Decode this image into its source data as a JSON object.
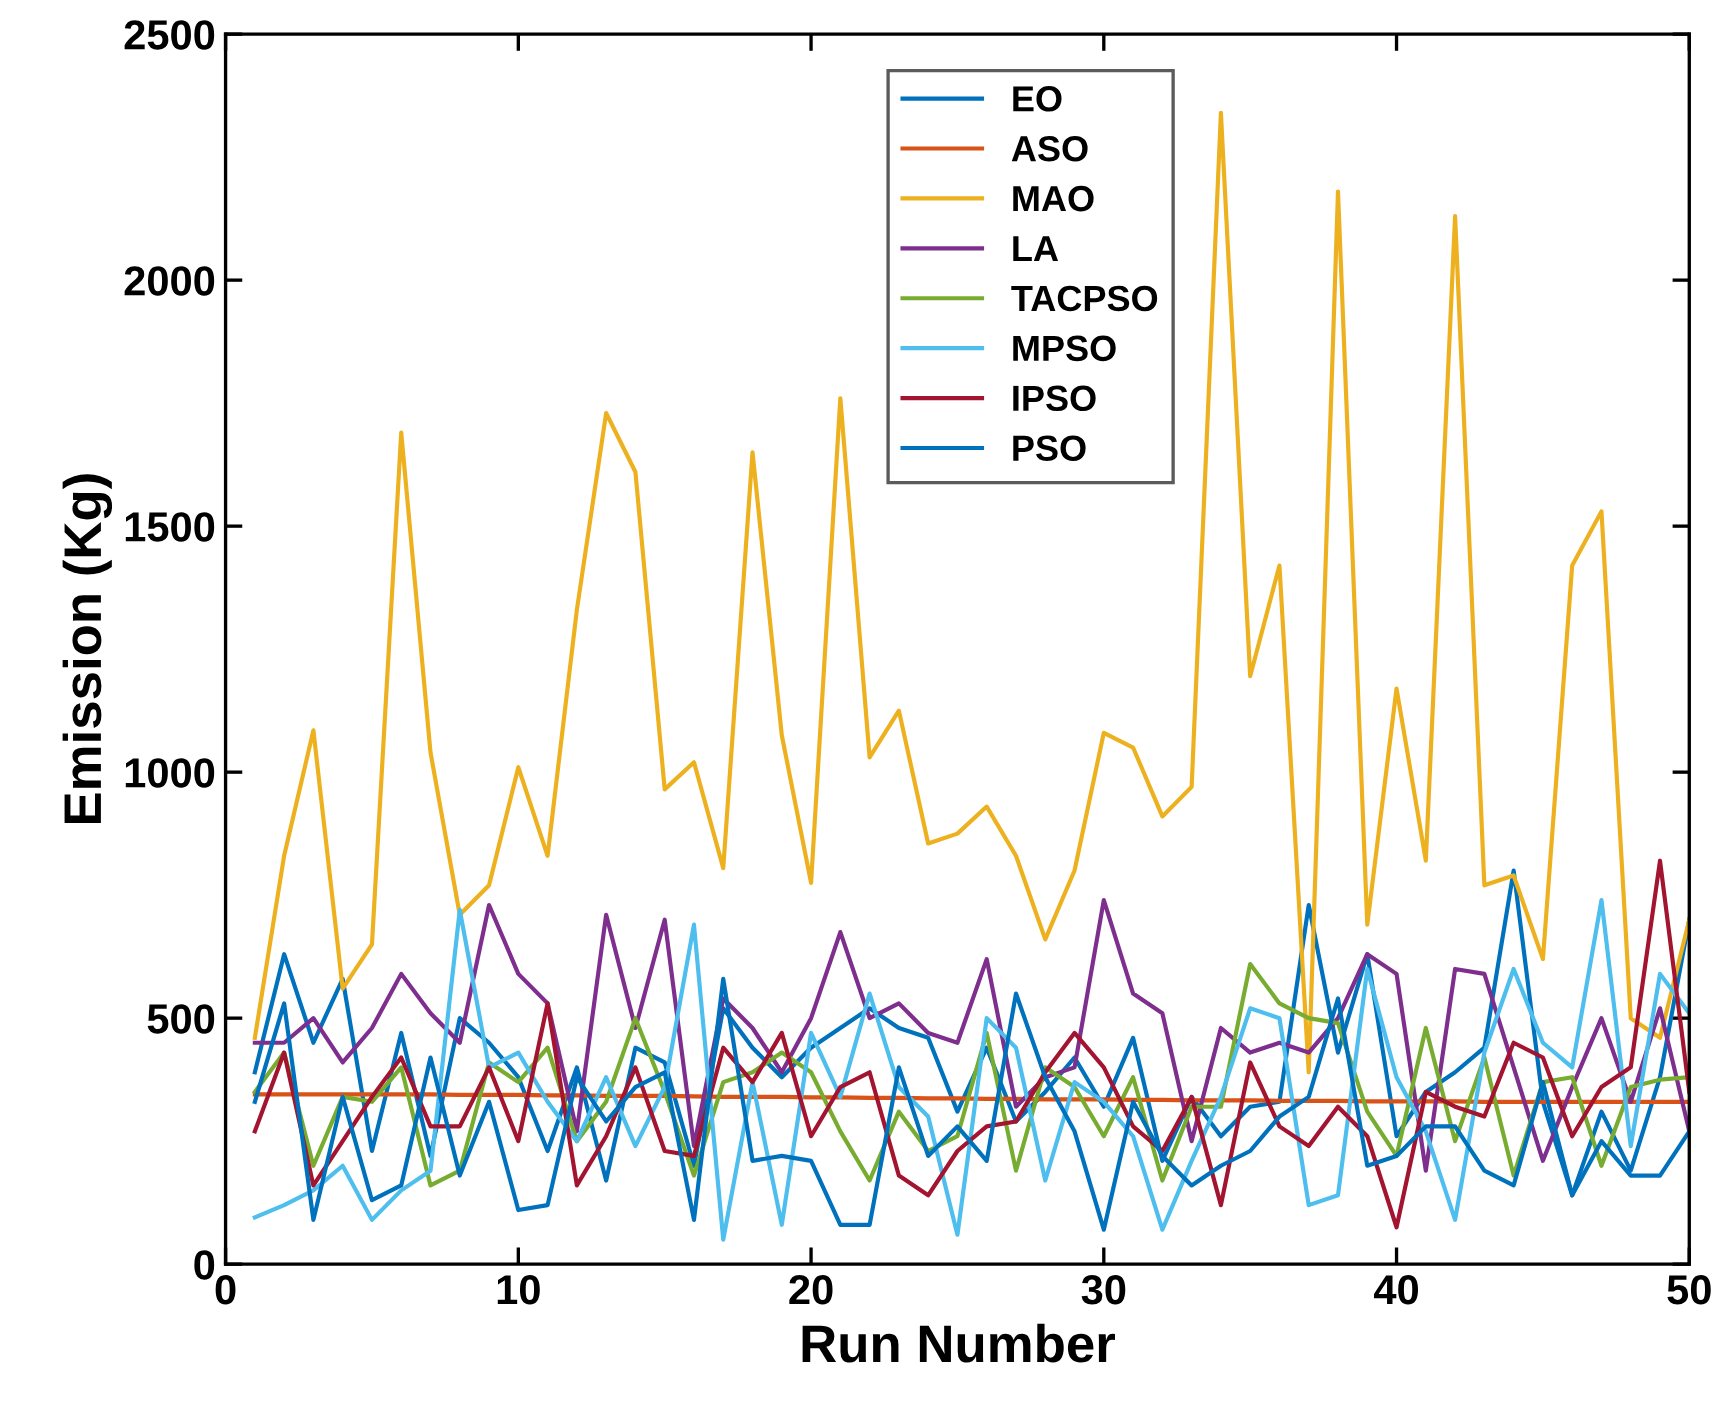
{
  "chart_data": {
    "type": "line",
    "xlabel": "Run Number",
    "ylabel": "Emission (Kg)",
    "x": [
      1,
      2,
      3,
      4,
      5,
      6,
      7,
      8,
      9,
      10,
      11,
      12,
      13,
      14,
      15,
      16,
      17,
      18,
      19,
      20,
      21,
      22,
      23,
      24,
      25,
      26,
      27,
      28,
      29,
      30,
      31,
      32,
      33,
      34,
      35,
      36,
      37,
      38,
      39,
      40,
      41,
      42,
      43,
      44,
      45,
      46,
      47,
      48,
      49,
      50
    ],
    "xlim": [
      0,
      50
    ],
    "xticks": [
      0,
      10,
      20,
      30,
      40,
      50
    ],
    "ylim": [
      0,
      2500
    ],
    "yticks": [
      0,
      500,
      1000,
      1500,
      2000,
      2500
    ],
    "grid": false,
    "legend": "top",
    "marker": "none",
    "line_style": "solid",
    "series": [
      {
        "name": "EO",
        "color": "#0072bd",
        "values": [
          390,
          630,
          450,
          580,
          230,
          470,
          220,
          500,
          450,
          380,
          230,
          400,
          170,
          440,
          410,
          200,
          520,
          440,
          380,
          440,
          480,
          520,
          480,
          460,
          310,
          440,
          290,
          350,
          420,
          320,
          460,
          210,
          340,
          260,
          320,
          330,
          730,
          430,
          630,
          260,
          350,
          390,
          440,
          800,
          330,
          140,
          310,
          190,
          380,
          700
        ]
      },
      {
        "name": "ASO",
        "color": "#d95319",
        "values": [
          345,
          345,
          345,
          345,
          345,
          345,
          345,
          344,
          344,
          344,
          343,
          343,
          342,
          342,
          342,
          341,
          340,
          340,
          340,
          339,
          339,
          338,
          338,
          337,
          337,
          336,
          336,
          335,
          335,
          335,
          334,
          334,
          333,
          333,
          333,
          332,
          332,
          332,
          331,
          331,
          331,
          331,
          330,
          330,
          330,
          330,
          330,
          330,
          330,
          330
        ]
      },
      {
        "name": "MAO",
        "color": "#edb120",
        "values": [
          460,
          830,
          1085,
          560,
          650,
          1690,
          1040,
          710,
          770,
          1010,
          830,
          1330,
          1730,
          1610,
          965,
          1020,
          805,
          1650,
          1075,
          775,
          1760,
          1030,
          1125,
          855,
          875,
          930,
          830,
          660,
          800,
          1080,
          1050,
          910,
          970,
          2340,
          1195,
          1420,
          390,
          2180,
          690,
          1170,
          820,
          2130,
          770,
          790,
          620,
          1420,
          1530,
          500,
          460,
          700
        ]
      },
      {
        "name": "LA",
        "color": "#7e2f8e",
        "values": [
          450,
          450,
          500,
          410,
          480,
          590,
          510,
          450,
          730,
          590,
          530,
          270,
          710,
          480,
          700,
          240,
          540,
          480,
          390,
          500,
          675,
          500,
          530,
          470,
          450,
          620,
          320,
          380,
          400,
          740,
          550,
          510,
          250,
          480,
          430,
          450,
          430,
          500,
          630,
          590,
          190,
          600,
          590,
          400,
          210,
          360,
          500,
          330,
          520,
          270
        ]
      },
      {
        "name": "TACPSO",
        "color": "#77ac30",
        "values": [
          350,
          430,
          200,
          340,
          330,
          400,
          160,
          190,
          410,
          370,
          440,
          250,
          330,
          500,
          350,
          180,
          370,
          390,
          430,
          390,
          270,
          170,
          310,
          230,
          260,
          470,
          190,
          400,
          360,
          260,
          380,
          170,
          320,
          320,
          610,
          530,
          500,
          490,
          310,
          220,
          480,
          250,
          420,
          180,
          370,
          380,
          200,
          360,
          375,
          380
        ]
      },
      {
        "name": "MPSO",
        "color": "#4dbeee",
        "values": [
          95,
          120,
          150,
          200,
          90,
          150,
          190,
          720,
          400,
          430,
          330,
          250,
          380,
          240,
          360,
          690,
          50,
          370,
          80,
          470,
          340,
          550,
          360,
          300,
          60,
          500,
          440,
          170,
          370,
          330,
          260,
          70,
          210,
          340,
          520,
          500,
          120,
          140,
          600,
          380,
          270,
          90,
          430,
          600,
          450,
          400,
          740,
          240,
          590,
          510
        ]
      },
      {
        "name": "IPSO",
        "color": "#a2142f",
        "values": [
          270,
          430,
          160,
          250,
          340,
          420,
          280,
          280,
          400,
          250,
          530,
          160,
          260,
          400,
          230,
          220,
          440,
          370,
          470,
          260,
          360,
          390,
          180,
          140,
          230,
          280,
          290,
          390,
          470,
          400,
          280,
          230,
          340,
          120,
          410,
          280,
          240,
          320,
          260,
          75,
          350,
          320,
          300,
          450,
          420,
          260,
          360,
          400,
          820,
          350
        ]
      },
      {
        "name": "PSO",
        "color": "#0072bd",
        "values": [
          330,
          530,
          90,
          340,
          130,
          160,
          420,
          180,
          330,
          110,
          120,
          380,
          290,
          360,
          390,
          90,
          580,
          210,
          220,
          210,
          80,
          80,
          400,
          220,
          280,
          210,
          550,
          380,
          270,
          70,
          330,
          220,
          160,
          200,
          230,
          300,
          340,
          540,
          200,
          220,
          280,
          280,
          190,
          160,
          370,
          140,
          250,
          180,
          180,
          270
        ]
      }
    ]
  }
}
